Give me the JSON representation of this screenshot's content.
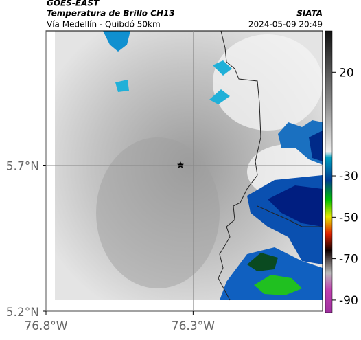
{
  "header": {
    "title": "GOES-EAST",
    "subtitle": "Temperatura de Brillo CH13",
    "location": "Vía Medellín - Quibdó 50km",
    "source": "SIATA",
    "timestamp": "2024-05-09 20:49"
  },
  "map": {
    "lat_lim": [
      5.2,
      6.16
    ],
    "lon_lim": [
      -76.8,
      -75.86
    ],
    "lat_ticks": [
      {
        "value": 5.7,
        "label": "5.7°N"
      },
      {
        "value": 5.2,
        "label": "5.2°N"
      }
    ],
    "lon_ticks": [
      {
        "value": -76.8,
        "label": "76.8°W"
      },
      {
        "value": -76.3,
        "label": "76.3°W"
      }
    ],
    "colorbar_lim": [
      40,
      -96
    ],
    "colorbar_ticks": [
      20,
      -30,
      -50,
      -70,
      -90
    ]
  }
}
